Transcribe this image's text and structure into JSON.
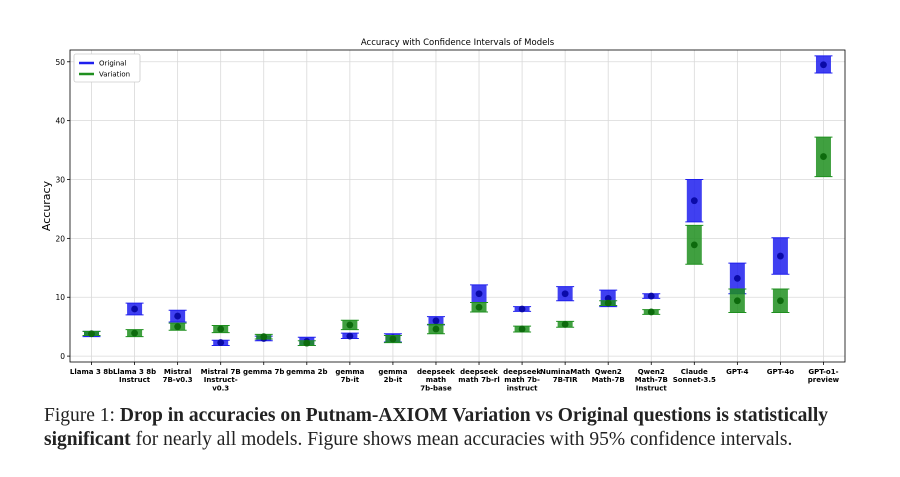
{
  "chart_data": {
    "type": "errorbar",
    "title": "Accuracy with Confidence Intervals of Models",
    "xlabel": "",
    "ylabel": "Accuracy",
    "ylim": [
      -1,
      52
    ],
    "yticks": [
      0,
      10,
      20,
      30,
      40,
      50
    ],
    "grid": true,
    "legend_position": "top-left",
    "categories": [
      [
        "Llama 3 8b"
      ],
      [
        "Llama 3 8b",
        "Instruct"
      ],
      [
        "Mistral",
        "7B-v0.3"
      ],
      [
        "Mistral 7B",
        "Instruct-",
        "v0.3"
      ],
      [
        "gemma 7b"
      ],
      [
        "gemma 2b"
      ],
      [
        "gemma",
        "7b-it"
      ],
      [
        "gemma",
        "2b-it"
      ],
      [
        "deepseek",
        "math",
        "7b-base"
      ],
      [
        "deepseek",
        "math 7b-rl"
      ],
      [
        "deepseek",
        "math 7b-",
        "instruct"
      ],
      [
        "NuminaMath",
        "7B-TIR"
      ],
      [
        "Qwen2",
        "Math-7B"
      ],
      [
        "Qwen2",
        "Math-7B",
        "Instruct"
      ],
      [
        "Claude",
        "Sonnet-3.5"
      ],
      [
        "GPT-4"
      ],
      [
        "GPT-4o"
      ],
      [
        "GPT-o1-",
        "preview"
      ]
    ],
    "series": [
      {
        "name": "Original",
        "color": "#1f1fee",
        "values": [
          3.8,
          8.0,
          6.8,
          2.3,
          3.0,
          2.5,
          3.4,
          3.1,
          6.0,
          10.6,
          8.0,
          10.6,
          9.8,
          10.2,
          26.4,
          13.2,
          17.0,
          49.5
        ],
        "lower": [
          3.3,
          7.0,
          5.8,
          1.8,
          2.6,
          1.8,
          3.0,
          2.4,
          5.3,
          9.1,
          7.6,
          9.4,
          8.4,
          9.8,
          22.8,
          10.6,
          13.9,
          48.1
        ],
        "upper": [
          4.2,
          9.0,
          7.8,
          2.7,
          3.4,
          3.2,
          3.9,
          3.8,
          6.7,
          12.1,
          8.4,
          11.8,
          11.2,
          10.6,
          30.0,
          15.8,
          20.1,
          51.0
        ]
      },
      {
        "name": "Variation",
        "color": "#1f8f1f",
        "values": [
          3.8,
          3.9,
          5.0,
          4.6,
          3.3,
          2.2,
          5.3,
          2.9,
          4.6,
          8.3,
          4.6,
          5.4,
          9.0,
          7.5,
          18.9,
          9.4,
          9.4,
          33.9
        ],
        "lower": [
          3.5,
          3.3,
          4.4,
          4.0,
          2.9,
          1.8,
          4.5,
          2.3,
          3.8,
          7.5,
          4.1,
          4.9,
          8.6,
          7.1,
          15.6,
          7.4,
          7.4,
          30.5
        ],
        "upper": [
          4.2,
          4.5,
          5.6,
          5.2,
          3.7,
          2.6,
          6.1,
          3.5,
          5.4,
          9.1,
          5.1,
          5.9,
          9.4,
          7.9,
          22.2,
          11.4,
          11.4,
          37.2
        ]
      }
    ]
  },
  "caption": {
    "label": "Figure 1: ",
    "bold": "Drop in accuracies on Putnam-AXIOM Variation vs Original questions is statistically significant",
    "rest": " for nearly all models. Figure shows mean accuracies with 95% confidence intervals."
  }
}
